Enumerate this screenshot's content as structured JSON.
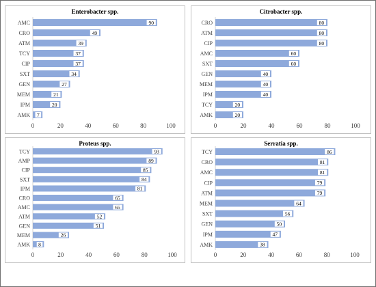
{
  "colors": {
    "bar": "#8ea9db",
    "frame": "#6e6e6e",
    "panel_border": "#bfbfbf"
  },
  "chart_data": [
    {
      "type": "bar",
      "orientation": "horizontal",
      "title": "Enterobacter spp.",
      "categories": [
        "AMC",
        "CRO",
        "ATM",
        "TCY",
        "CIP",
        "SXT",
        "GEN",
        "MEM",
        "IPM",
        "AMK"
      ],
      "values": [
        90,
        49,
        39,
        37,
        37,
        34,
        27,
        21,
        20,
        7
      ],
      "xlim": [
        0,
        100
      ],
      "xticks": [
        0,
        20,
        40,
        60,
        80,
        100
      ],
      "grid": false
    },
    {
      "type": "bar",
      "orientation": "horizontal",
      "title": "Citrobacter spp.",
      "categories": [
        "CRO",
        "ATM",
        "CIP",
        "AMC",
        "SXT",
        "GEN",
        "MEM",
        "IPM",
        "TCY",
        "AMK"
      ],
      "values": [
        80,
        80,
        80,
        60,
        60,
        40,
        40,
        40,
        20,
        20
      ],
      "xlim": [
        0,
        100
      ],
      "xticks": [
        0,
        20,
        40,
        60,
        80,
        100
      ],
      "grid": false
    },
    {
      "type": "bar",
      "orientation": "horizontal",
      "title": "Proteus spp.",
      "categories": [
        "TCY",
        "AMP",
        "CIP",
        "SXT",
        "IPM",
        "CRO",
        "AMC",
        "ATM",
        "GEN",
        "MEM",
        "AMK"
      ],
      "values": [
        93,
        89,
        85,
        84,
        81,
        65,
        65,
        52,
        51,
        26,
        8
      ],
      "xlim": [
        0,
        100
      ],
      "xticks": [
        0,
        20,
        40,
        60,
        80,
        100
      ],
      "grid": false
    },
    {
      "type": "bar",
      "orientation": "horizontal",
      "title": "Serratia spp.",
      "categories": [
        "TCY",
        "CRO",
        "AMC",
        "CIP",
        "ATM",
        "MEM",
        "SXT",
        "GEN",
        "IPM",
        "AMK"
      ],
      "values": [
        86,
        81,
        81,
        79,
        79,
        64,
        56,
        50,
        47,
        38
      ],
      "xlim": [
        0,
        100
      ],
      "xticks": [
        0,
        20,
        40,
        60,
        80,
        100
      ],
      "grid": false
    }
  ]
}
